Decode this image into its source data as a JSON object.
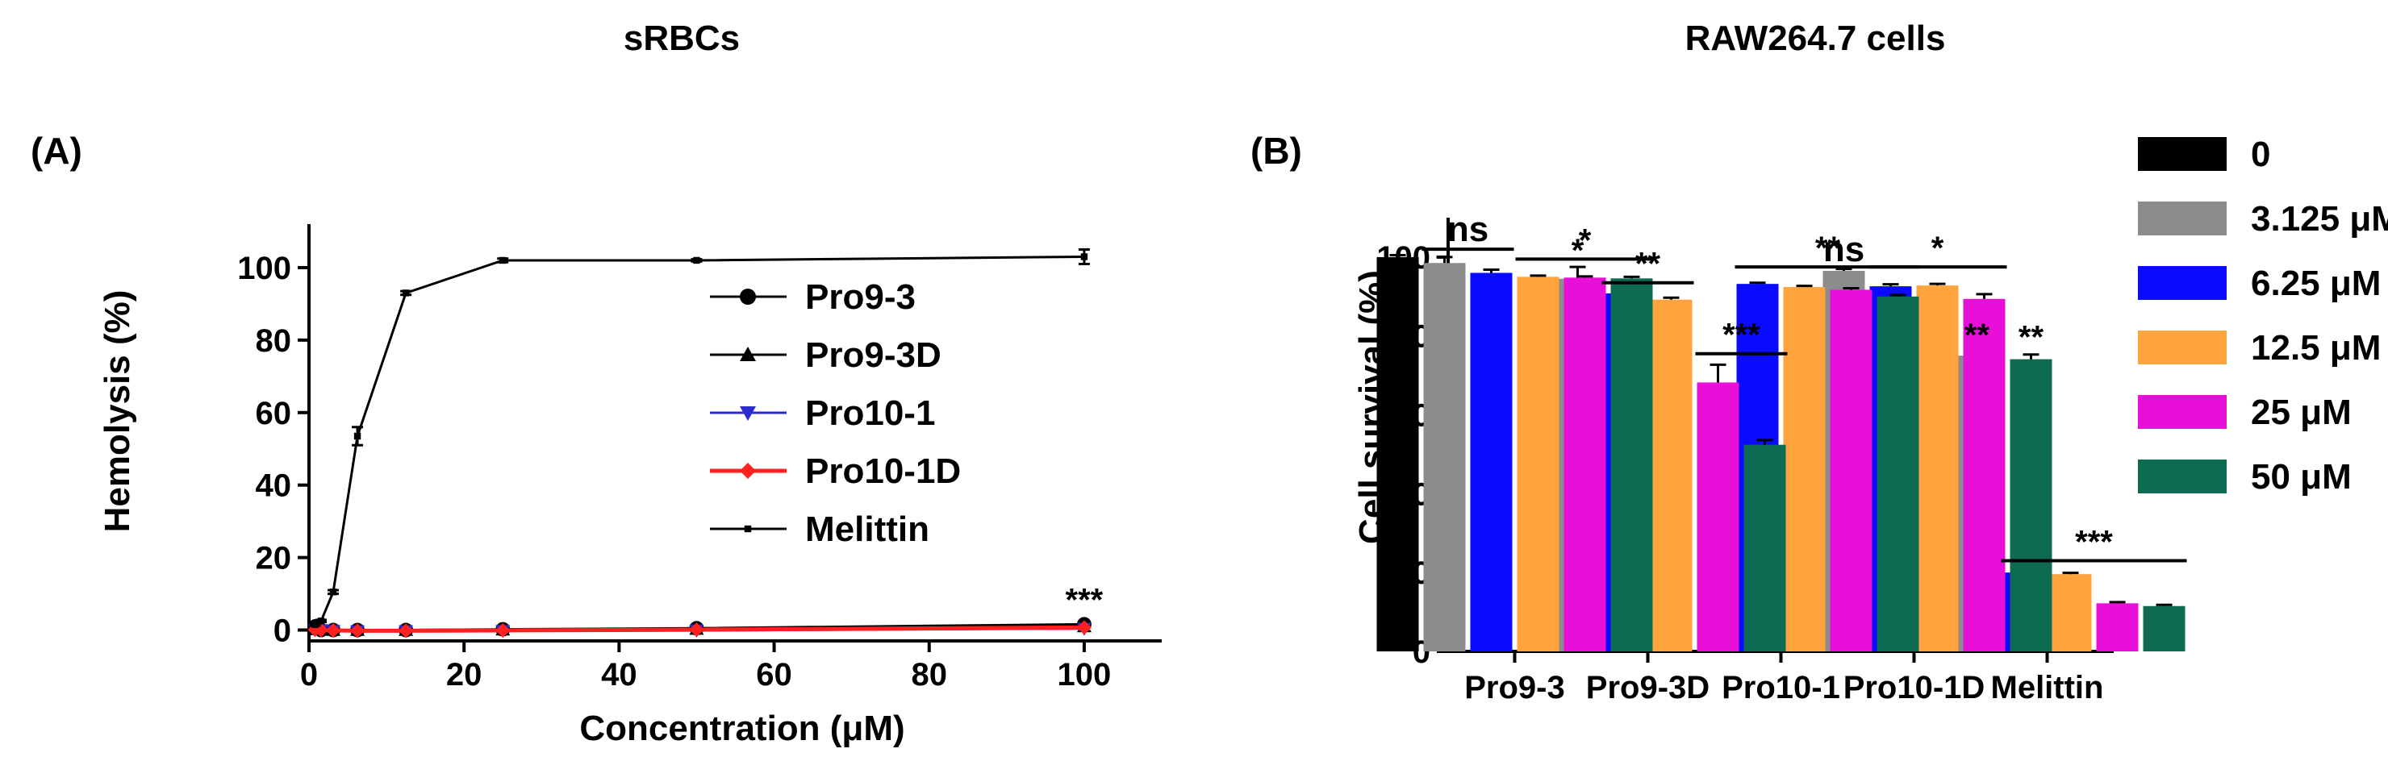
{
  "chart_data": [
    {
      "panel": "(A)",
      "type": "line",
      "title": "sRBCs",
      "xlabel": "Concentration (μM)",
      "ylabel": "Hemolysis (%)",
      "xlim": [
        0,
        110
      ],
      "ylim": [
        -3,
        112
      ],
      "xticks": [
        0,
        20,
        40,
        60,
        80,
        100
      ],
      "yticks": [
        0,
        20,
        40,
        60,
        80,
        100
      ],
      "legend_position": "center-right",
      "series": [
        {
          "name": "Pro9-3",
          "marker": "circle",
          "color": "#000000",
          "x": [
            0.78,
            1.56,
            3.125,
            6.25,
            12.5,
            25,
            50,
            100
          ],
          "y": [
            1.0,
            0.0,
            0.0,
            0.0,
            0.0,
            0.2,
            0.5,
            1.6
          ],
          "err": [
            0.3,
            0.2,
            0.2,
            0.2,
            0.2,
            0.2,
            0.2,
            0.4
          ]
        },
        {
          "name": "Pro9-3D",
          "marker": "triangle-up",
          "color": "#000000",
          "x": [
            0.78,
            1.56,
            3.125,
            6.25,
            12.5,
            25,
            50,
            100
          ],
          "y": [
            0.2,
            0.1,
            0.0,
            0.0,
            0.0,
            0.1,
            0.3,
            1.0
          ],
          "err": [
            0.2,
            0.2,
            0.2,
            0.2,
            0.2,
            0.2,
            0.2,
            0.3
          ]
        },
        {
          "name": "Pro10-1",
          "marker": "triangle-down",
          "color": "#2b2bd0",
          "x": [
            0.78,
            1.56,
            3.125,
            6.25,
            12.5,
            25,
            50,
            100
          ],
          "y": [
            0.1,
            0.0,
            -0.2,
            -0.3,
            -0.3,
            -0.2,
            -0.1,
            0.4
          ],
          "err": [
            0.2,
            0.2,
            0.2,
            0.2,
            0.2,
            0.2,
            0.2,
            0.3
          ]
        },
        {
          "name": "Pro10-1D",
          "marker": "diamond",
          "color": "#ff2020",
          "x": [
            0.78,
            1.56,
            3.125,
            6.25,
            12.5,
            25,
            50,
            100
          ],
          "y": [
            0.1,
            0.0,
            -0.1,
            -0.2,
            -0.2,
            -0.1,
            0.1,
            0.7
          ],
          "err": [
            0.2,
            0.2,
            0.2,
            0.2,
            0.2,
            0.2,
            0.2,
            0.3
          ]
        },
        {
          "name": "Melittin",
          "marker": "small-square",
          "color": "#000000",
          "x": [
            0.78,
            1.56,
            3.125,
            6.25,
            12.5,
            25,
            50,
            100
          ],
          "y": [
            1.5,
            2.5,
            10.5,
            53.5,
            93.0,
            102.0,
            102.0,
            103.0
          ],
          "err": [
            0.3,
            0.3,
            0.5,
            2.5,
            0.5,
            0.5,
            0.3,
            2.0
          ]
        }
      ],
      "annotations": [
        {
          "text": "***",
          "x": 100,
          "y": 4
        }
      ]
    },
    {
      "panel": "(B)",
      "type": "bar",
      "title": "RAW264.7 cells",
      "xlabel": "",
      "ylabel": "Cell survival (%)",
      "ylim": [
        0,
        110
      ],
      "yticks": [
        0,
        20,
        40,
        60,
        80,
        100
      ],
      "categories": [
        "Pro9-3",
        "Pro9-3D",
        "Pro10-1",
        "Pro10-1D",
        "Melittin"
      ],
      "legend_position": "right",
      "series": [
        {
          "name": "0",
          "color": "#000000",
          "values": [
            100.0,
            null,
            null,
            null,
            null
          ],
          "err": [
            0.5,
            null,
            null,
            null,
            null
          ]
        },
        {
          "name": "3.125 μM",
          "color": "#8c8c8c",
          "values": [
            98.5,
            94.5,
            null,
            96.5,
            75.0
          ],
          "err": [
            1.5,
            3.0,
            null,
            0.5,
            0.5
          ]
        },
        {
          "name": "6.25 μM",
          "color": "#0a0aff",
          "values": [
            96.0,
            90.8,
            93.2,
            92.6,
            20.0
          ],
          "err": [
            0.8,
            0.4,
            0.3,
            0.5,
            0.3
          ]
        },
        {
          "name": "12.5 μM",
          "color": "#ffa33d",
          "values": [
            95.0,
            89.2,
            92.4,
            92.8,
            19.6
          ],
          "err": [
            0.3,
            0.5,
            0.3,
            0.4,
            0.3
          ]
        },
        {
          "name": "25 μM",
          "color": "#e80fd8",
          "values": [
            94.8,
            68.2,
            91.7,
            89.4,
            12.2
          ],
          "err": [
            0.3,
            4.5,
            0.4,
            1.2,
            0.3
          ]
        },
        {
          "name": "50 μM",
          "color": "#0d6b52",
          "values": [
            94.6,
            52.4,
            90.0,
            74.1,
            11.5
          ],
          "err": [
            0.4,
            1.2,
            0.4,
            1.2,
            0.3
          ]
        }
      ],
      "annotations": [
        {
          "text": "ns",
          "category": 0,
          "from": 1,
          "to": 2,
          "line": true,
          "y": 102
        },
        {
          "text": "*",
          "category": 0,
          "from": 3,
          "to": 5,
          "line": true,
          "y": 99.5
        },
        {
          "text": "*",
          "category": 1,
          "series": 1,
          "line": false,
          "y": 99
        },
        {
          "text": "**",
          "category": 1,
          "from": 2,
          "to": 3,
          "line": true,
          "y": 93.5
        },
        {
          "text": "***",
          "category": 1,
          "from": 4,
          "to": 5,
          "line": true,
          "y": 75.5
        },
        {
          "text": "**",
          "category": 2,
          "from": 2,
          "to": 5,
          "line": true,
          "y": 97.5
        },
        {
          "text": "ns",
          "category": 3,
          "series": 1,
          "line": false,
          "y": 99
        },
        {
          "text": "*",
          "category": 3,
          "from": 2,
          "to": 4,
          "line": true,
          "y": 97.5
        },
        {
          "text": "**",
          "category": 3,
          "series": 5,
          "line": false,
          "y": 77
        },
        {
          "text": "**",
          "category": 4,
          "series": 1,
          "line": false,
          "y": 77.5
        },
        {
          "text": "***",
          "category": 4,
          "from": 2,
          "to": 5,
          "line": true,
          "y": 23
        }
      ]
    }
  ]
}
